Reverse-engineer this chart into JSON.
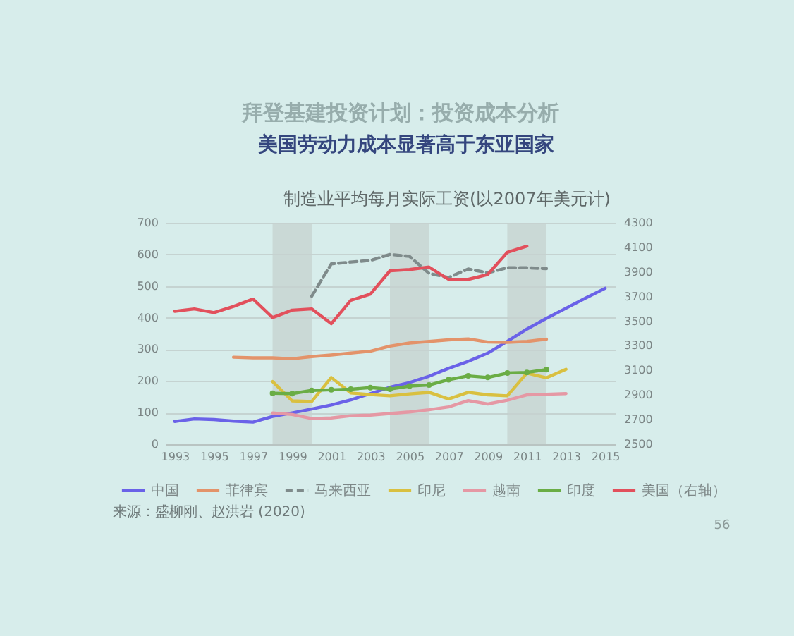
{
  "chart_data": {
    "type": "line",
    "title": "美国劳动力成本显著高于东亚国家",
    "subtitle": "制造业平均每月实际工资(以2007年美元计)",
    "annotations": [
      "拜登基建投资计划：投资成本分析",
      "来源：盛柳刚、赵洪岩 (2020)",
      "56"
    ],
    "xlim": [
      1992.5,
      2015.5
    ],
    "xticks": [
      1993,
      1995,
      1997,
      1999,
      2001,
      2003,
      2005,
      2007,
      2009,
      2011,
      2013,
      2015
    ],
    "ylim": [
      0,
      700
    ],
    "yticks": [
      0,
      100,
      200,
      300,
      400,
      500,
      600,
      700
    ],
    "y2lim": [
      2500,
      4300
    ],
    "y2ticks": [
      2500,
      2700,
      2900,
      3100,
      3300,
      3500,
      3700,
      3900,
      4100,
      4300
    ],
    "grid": "y",
    "legend": "bottom",
    "bands": [
      {
        "axis": "x",
        "from": 1998,
        "to": 2000,
        "color": "#c6d1cf"
      },
      {
        "axis": "x",
        "from": 2004,
        "to": 2006,
        "color": "#c6d1cf"
      },
      {
        "axis": "x",
        "from": 2010,
        "to": 2012,
        "color": "#c6d1cf"
      }
    ],
    "series": [
      {
        "name": "中国",
        "color": "#6a62e8",
        "x": [
          1993,
          1994,
          1995,
          1996,
          1997,
          1998,
          1999,
          2000,
          2001,
          2002,
          2003,
          2004,
          2005,
          2006,
          2007,
          2008,
          2009,
          2010,
          2011,
          2012,
          2013,
          2014,
          2015
        ],
        "values": [
          72,
          80,
          78,
          73,
          70,
          88,
          99,
          111,
          124,
          140,
          160,
          180,
          195,
          215,
          240,
          262,
          288,
          325,
          364,
          398,
          430,
          462,
          493
        ]
      },
      {
        "name": "菲律宾",
        "color": "#e3936a",
        "x": [
          1996,
          1997,
          1998,
          1999,
          2000,
          2001,
          2002,
          2003,
          2004,
          2005,
          2006,
          2007,
          2008,
          2009,
          2010,
          2011,
          2012
        ],
        "values": [
          275,
          273,
          273,
          270,
          277,
          282,
          288,
          294,
          310,
          320,
          325,
          330,
          333,
          323,
          322,
          325,
          332
        ]
      },
      {
        "name": "马来西亚",
        "color": "#7f8b8b",
        "line_style": "dashed",
        "x": [
          2000,
          2001,
          2002,
          2003,
          2004,
          2005,
          2006,
          2007,
          2008,
          2009,
          2010,
          2011,
          2012
        ],
        "values": [
          468,
          570,
          576,
          581,
          600,
          594,
          540,
          527,
          554,
          542,
          558,
          558,
          555
        ]
      },
      {
        "name": "印尼",
        "color": "#d9c040",
        "x": [
          1998,
          1999,
          2000,
          2001,
          2002,
          2003,
          2004,
          2005,
          2006,
          2007,
          2008,
          2009,
          2010,
          2011,
          2012,
          2013
        ],
        "values": [
          198,
          137,
          135,
          211,
          162,
          157,
          153,
          159,
          164,
          143,
          164,
          156,
          153,
          225,
          210,
          237
        ]
      },
      {
        "name": "越南",
        "color": "#e598a4",
        "x": [
          1998,
          1999,
          2000,
          2001,
          2002,
          2003,
          2004,
          2005,
          2006,
          2007,
          2008,
          2009,
          2010,
          2011,
          2012,
          2013
        ],
        "values": [
          99,
          94,
          81,
          83,
          90,
          92,
          97,
          102,
          109,
          118,
          138,
          127,
          139,
          156,
          158,
          160
        ]
      },
      {
        "name": "印度",
        "color": "#6aad45",
        "marker": "circle",
        "x": [
          1998,
          1999,
          2000,
          2001,
          2002,
          2003,
          2004,
          2005,
          2006,
          2007,
          2008,
          2009,
          2010,
          2011,
          2012
        ],
        "values": [
          161,
          160,
          170,
          172,
          174,
          179,
          174,
          184,
          187,
          204,
          216,
          211,
          225,
          227,
          236
        ]
      },
      {
        "name": "美国（右轴）",
        "color": "#e2505c",
        "axis": "y2",
        "x": [
          1993,
          1994,
          1995,
          1996,
          1997,
          1998,
          1999,
          2000,
          2001,
          2002,
          2003,
          2004,
          2005,
          2006,
          2007,
          2008,
          2009,
          2010,
          2011
        ],
        "values": [
          3580,
          3600,
          3570,
          3620,
          3680,
          3530,
          3590,
          3600,
          3480,
          3670,
          3720,
          3910,
          3920,
          3940,
          3840,
          3840,
          3880,
          4060,
          4110
        ]
      }
    ]
  }
}
